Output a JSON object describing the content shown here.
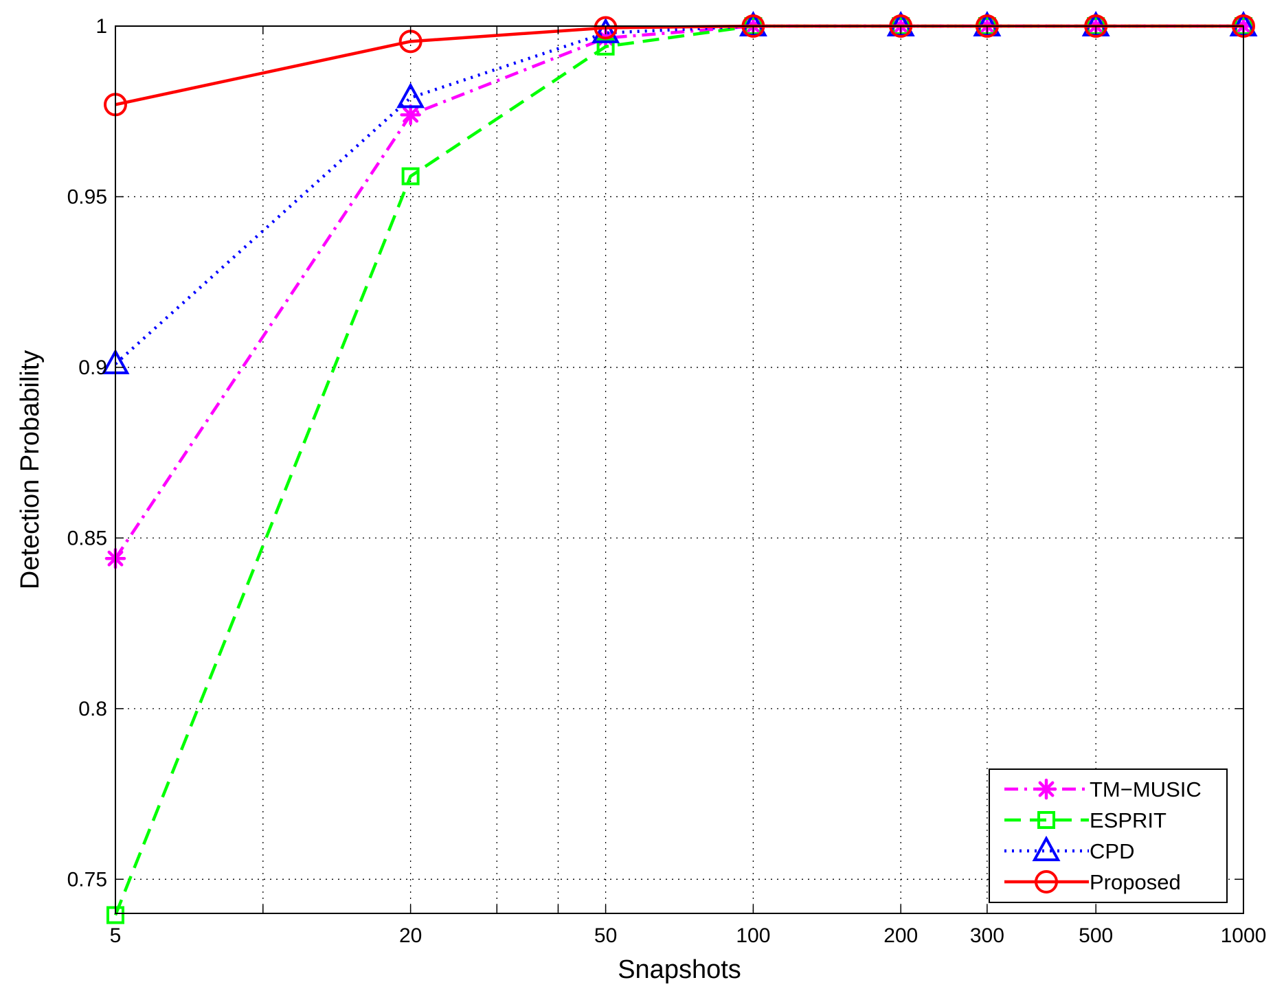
{
  "chart_data": {
    "type": "line",
    "xlabel": "Snapshots",
    "ylabel": "Detection Probability",
    "xscale": "log",
    "xlim": [
      5,
      1000
    ],
    "ylim": [
      0.74,
      1.0
    ],
    "x": [
      5,
      20,
      50,
      100,
      200,
      300,
      500,
      1000
    ],
    "xticks": [
      5,
      20,
      50,
      100,
      200,
      300,
      500,
      1000
    ],
    "xtick_labels": [
      "5",
      "20",
      "50",
      "100",
      "200",
      "300",
      "500",
      "1000"
    ],
    "xgrid": [
      5,
      10,
      20,
      30,
      40,
      50,
      100,
      200,
      300,
      500,
      1000
    ],
    "yticks": [
      0.75,
      0.8,
      0.85,
      0.9,
      0.95,
      1.0
    ],
    "ytick_labels": [
      "0.75",
      "0.8",
      "0.85",
      "0.9",
      "0.95",
      "1"
    ],
    "grid": true,
    "legend_position": "bottom-right",
    "series": [
      {
        "name": "TM−MUSIC",
        "color": "#ff00ff",
        "line_style": "dash-dot",
        "marker": "asterisk",
        "values": [
          0.844,
          0.974,
          0.9965,
          1.0,
          1.0,
          1.0,
          1.0,
          1.0
        ]
      },
      {
        "name": "ESPRIT",
        "color": "#00ff00",
        "line_style": "dashed",
        "marker": "square",
        "values": [
          0.7395,
          0.956,
          0.994,
          1.0,
          1.0,
          1.0,
          1.0,
          1.0
        ]
      },
      {
        "name": "CPD",
        "color": "#0000ff",
        "line_style": "dotted",
        "marker": "triangle",
        "values": [
          0.901,
          0.979,
          0.998,
          1.0,
          1.0,
          1.0,
          1.0,
          1.0
        ]
      },
      {
        "name": "Proposed",
        "color": "#ff0000",
        "line_style": "solid",
        "marker": "circle",
        "values": [
          0.977,
          0.9955,
          0.9995,
          1.0,
          1.0,
          1.0,
          1.0,
          1.0
        ]
      }
    ]
  }
}
